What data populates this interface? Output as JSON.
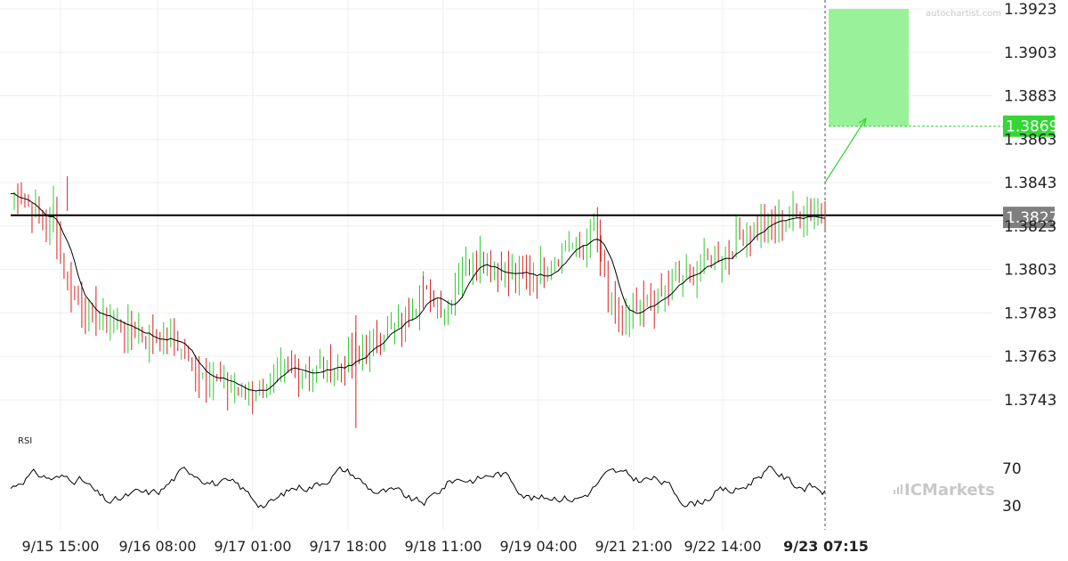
{
  "watermark": "autochartist.com",
  "brand": "ICMarkets",
  "rsi_label": "RSI",
  "chart_data": {
    "type": "candlestick",
    "y_axis": {
      "ticks": [
        "1.3923",
        "1.3903",
        "1.3883",
        "1.3863",
        "1.3843",
        "1.3823",
        "1.3803",
        "1.3783",
        "1.3763",
        "1.3743"
      ],
      "range": [
        1.3712,
        1.3925
      ]
    },
    "x_axis": {
      "ticks": [
        "9/15 15:00",
        "9/16 08:00",
        "9/17 01:00",
        "9/17 18:00",
        "9/18 11:00",
        "9/19 04:00",
        "9/21 21:00",
        "9/22 14:00",
        "9/23 07:15"
      ],
      "highlighted": "9/23 07:15"
    },
    "price_path": [
      [
        0,
        1.3838
      ],
      [
        10,
        1.3837
      ],
      [
        25,
        1.383
      ],
      [
        40,
        1.3822
      ],
      [
        48,
        1.3832
      ],
      [
        58,
        1.3805
      ],
      [
        70,
        1.3794
      ],
      [
        80,
        1.3785
      ],
      [
        92,
        1.3782
      ],
      [
        110,
        1.378
      ],
      [
        130,
        1.3776
      ],
      [
        150,
        1.3773
      ],
      [
        170,
        1.377
      ],
      [
        180,
        1.3772
      ],
      [
        190,
        1.3768
      ],
      [
        200,
        1.376
      ],
      [
        215,
        1.3754
      ],
      [
        228,
        1.3756
      ],
      [
        240,
        1.3749
      ],
      [
        252,
        1.3749
      ],
      [
        265,
        1.3746
      ],
      [
        285,
        1.375
      ],
      [
        300,
        1.3754
      ],
      [
        320,
        1.3757
      ],
      [
        340,
        1.3756
      ],
      [
        360,
        1.3758
      ],
      [
        380,
        1.376
      ],
      [
        395,
        1.3763
      ],
      [
        410,
        1.3771
      ],
      [
        425,
        1.3776
      ],
      [
        440,
        1.3778
      ],
      [
        458,
        1.3787
      ],
      [
        465,
        1.3796
      ],
      [
        475,
        1.379
      ],
      [
        490,
        1.3784
      ],
      [
        500,
        1.3794
      ],
      [
        512,
        1.3803
      ],
      [
        525,
        1.381
      ],
      [
        540,
        1.3804
      ],
      [
        560,
        1.3801
      ],
      [
        580,
        1.38
      ],
      [
        600,
        1.3801
      ],
      [
        615,
        1.3808
      ],
      [
        630,
        1.3815
      ],
      [
        645,
        1.3813
      ],
      [
        660,
        1.3822
      ],
      [
        668,
        1.3806
      ],
      [
        675,
        1.379
      ],
      [
        685,
        1.3782
      ],
      [
        695,
        1.3779
      ],
      [
        710,
        1.3784
      ],
      [
        730,
        1.3789
      ],
      [
        745,
        1.3796
      ],
      [
        770,
        1.3802
      ],
      [
        790,
        1.3808
      ],
      [
        810,
        1.381
      ],
      [
        825,
        1.3818
      ],
      [
        840,
        1.3822
      ],
      [
        858,
        1.3825
      ],
      [
        880,
        1.3827
      ],
      [
        900,
        1.3829
      ],
      [
        920,
        1.3827
      ]
    ],
    "resistance_level": 1.3828,
    "current_price": "1.3827",
    "forecast": {
      "target_price": "1.3869",
      "target_zone": [
        1.3869,
        1.3923
      ]
    },
    "rsi": {
      "ticks": [
        "70",
        "30"
      ],
      "levels": [
        70,
        30
      ]
    },
    "colors": {
      "up": "#2ecc2e",
      "down": "#d62020",
      "ma": "#000000",
      "target_zone": "#99f299",
      "target_tag": "#33d633",
      "price_tag": "#7f7f7f"
    }
  }
}
